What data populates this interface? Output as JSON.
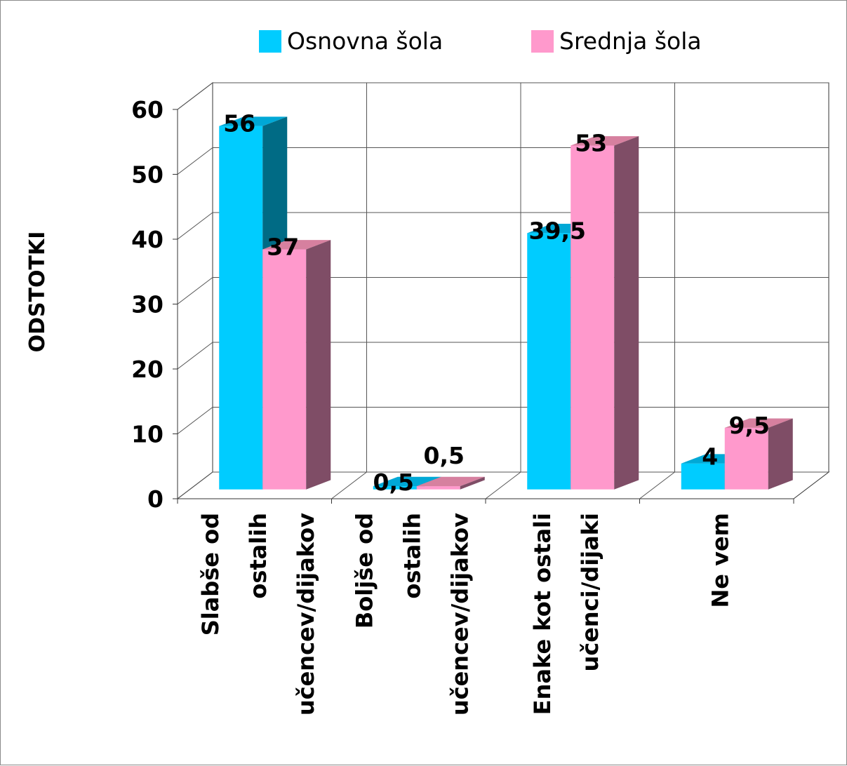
{
  "chart_data": {
    "type": "bar",
    "style": "3d-clustered-column",
    "categories": [
      [
        "Slabše od",
        "ostalih",
        "učencev/dijakov"
      ],
      [
        "Boljše od",
        "ostalih",
        "učencev/dijakov"
      ],
      [
        "Enake kot ostali",
        "učenci/dijaki"
      ],
      [
        "Ne vem"
      ]
    ],
    "series": [
      {
        "name": "Osnovna šola",
        "values": [
          56,
          0.5,
          39.5,
          4
        ],
        "labels": [
          "56",
          "0,5",
          "39,5",
          "4"
        ],
        "front_color": "#00ccff",
        "top_color": "#00a8d6",
        "side_color": "#006b85"
      },
      {
        "name": "Srednja šola",
        "values": [
          37,
          0.5,
          53,
          9.5
        ],
        "labels": [
          "37",
          "0,5",
          "53",
          "9,5"
        ],
        "front_color": "#ff99cc",
        "top_color": "#d6809f",
        "side_color": "#7f4d66"
      }
    ],
    "ylabel": "ODSTOTKI",
    "yticks": [
      "0",
      "10",
      "20",
      "30",
      "40",
      "50",
      "60"
    ],
    "ylim": [
      0,
      60
    ],
    "grid": true,
    "legend_position": "top"
  }
}
